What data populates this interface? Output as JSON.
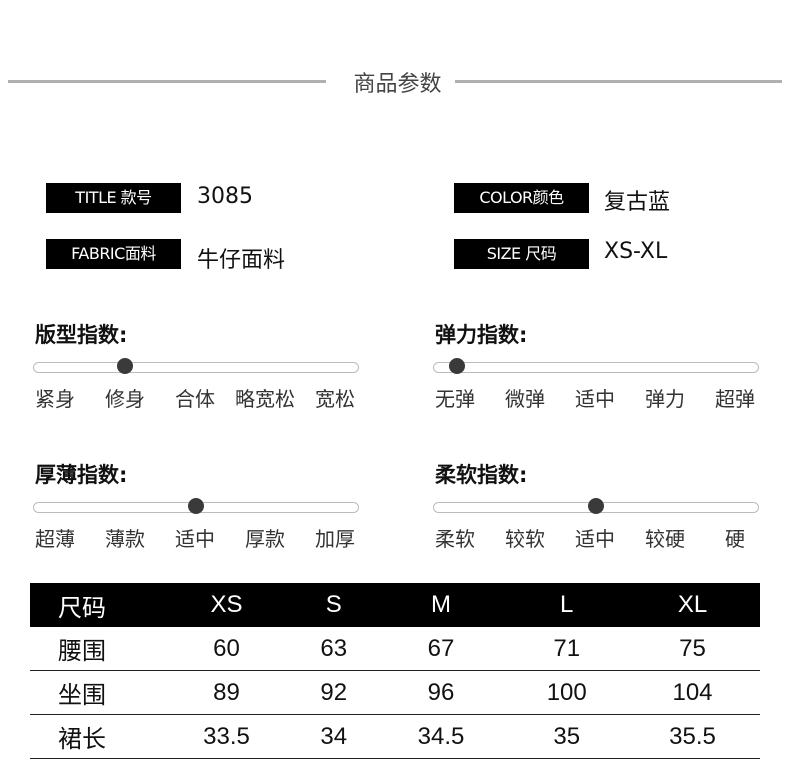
{
  "section_title": "商品参数",
  "params": [
    {
      "tag": "TITLE 款号",
      "value": "3085"
    },
    {
      "tag": "COLOR颜色",
      "value": "复古蓝"
    },
    {
      "tag": "FABRIC面料",
      "value": "牛仔面料"
    },
    {
      "tag": "SIZE 尺码",
      "value": "XS-XL"
    }
  ],
  "indices": [
    {
      "title": "版型指数:",
      "labels": [
        "紧身",
        "修身",
        "合体",
        "略宽松",
        "宽松"
      ],
      "level": 0.28
    },
    {
      "title": "弹力指数:",
      "labels": [
        "无弹",
        "微弹",
        "适中",
        "弹力",
        "超弹"
      ],
      "level": 0.07
    },
    {
      "title": "厚薄指数:",
      "labels": [
        "超薄",
        "薄款",
        "适中",
        "厚款",
        "加厚"
      ],
      "level": 0.5
    },
    {
      "title": "柔软指数:",
      "labels": [
        "柔软",
        "较软",
        "适中",
        "较硬",
        "硬"
      ],
      "level": 0.5
    }
  ],
  "size_table": {
    "headers": [
      "尺码",
      "XS",
      "S",
      "M",
      "L",
      "XL"
    ],
    "rows": [
      [
        "腰围",
        "60",
        "63",
        "67",
        "71",
        "75"
      ],
      [
        "坐围",
        "89",
        "92",
        "96",
        "100",
        "104"
      ],
      [
        "裙长",
        "33.5",
        "34",
        "34.5",
        "35",
        "35.5"
      ]
    ]
  }
}
